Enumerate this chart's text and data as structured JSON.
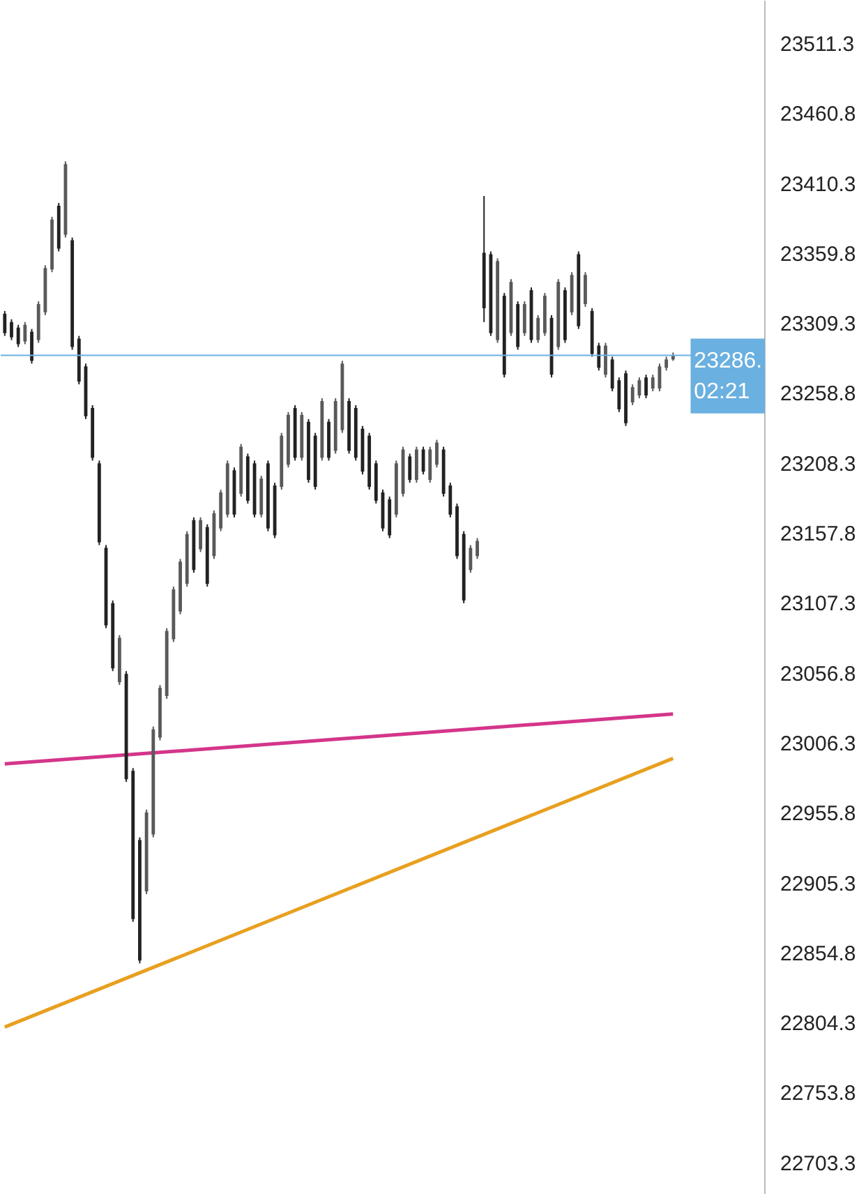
{
  "chart_data": {
    "type": "candlestick",
    "categories": [
      null,
      null,
      null,
      null,
      null,
      null,
      null,
      null,
      null,
      null,
      null,
      null,
      null,
      null,
      null,
      null,
      null,
      null,
      null,
      null,
      null,
      null,
      null,
      null,
      null,
      null,
      null,
      null,
      null,
      null,
      null,
      null,
      null,
      null,
      null,
      null,
      null,
      null,
      null,
      null,
      null,
      null,
      null,
      null,
      null,
      null,
      null,
      null,
      null,
      null,
      null,
      null,
      null,
      null,
      null,
      null,
      null,
      null,
      null,
      null,
      null,
      null,
      null,
      null,
      null,
      null,
      null,
      null,
      null,
      null,
      null,
      null,
      null,
      null,
      null,
      null,
      null,
      null,
      null,
      null,
      null,
      null,
      null,
      null,
      null,
      null,
      null,
      null,
      null,
      null,
      null,
      null,
      null,
      null,
      null,
      null,
      null,
      null,
      null,
      null
    ],
    "ohlc": [
      [
        23316,
        23318,
        23300,
        23302
      ],
      [
        23310,
        23312,
        23297,
        23299
      ],
      [
        23306,
        23308,
        23292,
        23294
      ],
      [
        23296,
        23310,
        23294,
        23308
      ],
      [
        23303,
        23305,
        23280,
        23282
      ],
      [
        23297,
        23325,
        23295,
        23323
      ],
      [
        23317,
        23351,
        23315,
        23349
      ],
      [
        23348,
        23386,
        23346,
        23384
      ],
      [
        23394,
        23396,
        23361,
        23363
      ],
      [
        23373,
        23426,
        23371,
        23424
      ],
      [
        23369,
        23371,
        23290,
        23292
      ],
      [
        23298,
        23300,
        23265,
        23267
      ],
      [
        23278,
        23280,
        23240,
        23242
      ],
      [
        23248,
        23250,
        23210,
        23212
      ],
      [
        23208,
        23210,
        23149,
        23151
      ],
      [
        23147,
        23149,
        23089,
        23091
      ],
      [
        23107,
        23109,
        23058,
        23060
      ],
      [
        23050,
        23084,
        23048,
        23082
      ],
      [
        23056,
        23058,
        22978,
        22980
      ],
      [
        22986,
        22988,
        22877,
        22879
      ],
      [
        22936,
        22938,
        22847,
        22849
      ],
      [
        22899,
        22958,
        22897,
        22956
      ],
      [
        22940,
        23018,
        22938,
        23016
      ],
      [
        23010,
        23048,
        23008,
        23046
      ],
      [
        23040,
        23089,
        23038,
        23087
      ],
      [
        23081,
        23119,
        23079,
        23117
      ],
      [
        23101,
        23139,
        23099,
        23137
      ],
      [
        23121,
        23159,
        23119,
        23157
      ],
      [
        23167,
        23169,
        23129,
        23131
      ],
      [
        23146,
        23169,
        23144,
        23167
      ],
      [
        23162,
        23164,
        23119,
        23121
      ],
      [
        23141,
        23174,
        23139,
        23172
      ],
      [
        23161,
        23189,
        23159,
        23187
      ],
      [
        23171,
        23210,
        23169,
        23208
      ],
      [
        23203,
        23205,
        23169,
        23171
      ],
      [
        23186,
        23222,
        23184,
        23220
      ],
      [
        23213,
        23215,
        23179,
        23181
      ],
      [
        23208,
        23210,
        23169,
        23171
      ],
      [
        23171,
        23199,
        23169,
        23197
      ],
      [
        23208,
        23210,
        23159,
        23161
      ],
      [
        23192,
        23194,
        23154,
        23156
      ],
      [
        23191,
        23230,
        23189,
        23228
      ],
      [
        23207,
        23245,
        23205,
        23243
      ],
      [
        23248,
        23250,
        23210,
        23212
      ],
      [
        23212,
        23245,
        23210,
        23243
      ],
      [
        23238,
        23240,
        23194,
        23196
      ],
      [
        23228,
        23230,
        23189,
        23191
      ],
      [
        23212,
        23255,
        23210,
        23253
      ],
      [
        23238,
        23240,
        23210,
        23212
      ],
      [
        23217,
        23255,
        23215,
        23253
      ],
      [
        23232,
        23282,
        23230,
        23280
      ],
      [
        23253,
        23255,
        23215,
        23217
      ],
      [
        23248,
        23250,
        23210,
        23212
      ],
      [
        23233,
        23235,
        23200,
        23202
      ],
      [
        23228,
        23230,
        23189,
        23191
      ],
      [
        23208,
        23210,
        23179,
        23181
      ],
      [
        23187,
        23189,
        23159,
        23161
      ],
      [
        23182,
        23184,
        23154,
        23156
      ],
      [
        23171,
        23210,
        23169,
        23208
      ],
      [
        23186,
        23220,
        23184,
        23218
      ],
      [
        23213,
        23215,
        23194,
        23196
      ],
      [
        23196,
        23220,
        23194,
        23218
      ],
      [
        23218,
        23220,
        23200,
        23202
      ],
      [
        23196,
        23220,
        23194,
        23218
      ],
      [
        23207,
        23225,
        23205,
        23223
      ],
      [
        23218,
        23220,
        23184,
        23186
      ],
      [
        23192,
        23194,
        23169,
        23171
      ],
      [
        23177,
        23179,
        23139,
        23141
      ],
      [
        23157,
        23159,
        23107,
        23109
      ],
      [
        23131,
        23149,
        23129,
        23147
      ],
      [
        23141,
        23154,
        23139,
        23152
      ],
      [
        23360,
        23401,
        23310,
        23320
      ],
      [
        23359,
        23361,
        23300,
        23302
      ],
      [
        23297,
        23356,
        23295,
        23354
      ],
      [
        23329,
        23331,
        23270,
        23272
      ],
      [
        23302,
        23341,
        23300,
        23339
      ],
      [
        23323,
        23325,
        23290,
        23292
      ],
      [
        23302,
        23325,
        23300,
        23323
      ],
      [
        23333,
        23335,
        23295,
        23297
      ],
      [
        23297,
        23315,
        23295,
        23313
      ],
      [
        23302,
        23331,
        23300,
        23329
      ],
      [
        23313,
        23315,
        23270,
        23272
      ],
      [
        23292,
        23341,
        23290,
        23339
      ],
      [
        23333,
        23335,
        23295,
        23297
      ],
      [
        23317,
        23346,
        23315,
        23344
      ],
      [
        23359,
        23361,
        23305,
        23307
      ],
      [
        23323,
        23346,
        23321,
        23344
      ],
      [
        23318,
        23320,
        23285,
        23287
      ],
      [
        23293,
        23295,
        23275,
        23277
      ],
      [
        23272,
        23295,
        23270,
        23293
      ],
      [
        23283,
        23285,
        23260,
        23262
      ],
      [
        23268,
        23270,
        23245,
        23247
      ],
      [
        23273,
        23275,
        23235,
        23237
      ],
      [
        23252,
        23265,
        23250,
        23263
      ],
      [
        23257,
        23270,
        23255,
        23268
      ],
      [
        23270,
        23272,
        23255,
        23257
      ],
      [
        23262,
        23272,
        23260,
        23270
      ],
      [
        23262,
        23280,
        23260,
        23278
      ],
      [
        23277,
        23285,
        23275,
        23283
      ],
      [
        23283,
        23288,
        23282,
        23286
      ]
    ],
    "colors": [
      "#222222",
      "#222222",
      "#222222",
      "#595959",
      "#222222",
      "#595959",
      "#595959",
      "#595959",
      "#222222",
      "#595959",
      "#222222",
      "#222222",
      "#222222",
      "#222222",
      "#222222",
      "#222222",
      "#222222",
      "#595959",
      "#222222",
      "#222222",
      "#222222",
      "#595959",
      "#595959",
      "#595959",
      "#595959",
      "#595959",
      "#595959",
      "#595959",
      "#222222",
      "#595959",
      "#222222",
      "#595959",
      "#595959",
      "#595959",
      "#222222",
      "#595959",
      "#222222",
      "#222222",
      "#595959",
      "#222222",
      "#222222",
      "#595959",
      "#595959",
      "#222222",
      "#595959",
      "#222222",
      "#222222",
      "#595959",
      "#222222",
      "#595959",
      "#595959",
      "#222222",
      "#222222",
      "#222222",
      "#222222",
      "#222222",
      "#222222",
      "#222222",
      "#595959",
      "#595959",
      "#222222",
      "#595959",
      "#222222",
      "#595959",
      "#595959",
      "#222222",
      "#222222",
      "#222222",
      "#222222",
      "#595959",
      "#595959",
      "#222222",
      "#222222",
      "#595959",
      "#222222",
      "#595959",
      "#222222",
      "#595959",
      "#222222",
      "#595959",
      "#595959",
      "#222222",
      "#595959",
      "#222222",
      "#595959",
      "#222222",
      "#595959",
      "#222222",
      "#222222",
      "#595959",
      "#222222",
      "#222222",
      "#222222",
      "#595959",
      "#595959",
      "#222222",
      "#595959",
      "#595959",
      "#595959",
      "#595959"
    ],
    "series": [
      {
        "type": "line",
        "values": [
          22991,
          null,
          null,
          null,
          null,
          null,
          null,
          null,
          null,
          null,
          null,
          null,
          null,
          null,
          null,
          null,
          null,
          null,
          null,
          null,
          null,
          null,
          null,
          null,
          null,
          null,
          null,
          null,
          null,
          null,
          null,
          null,
          null,
          null,
          null,
          null,
          null,
          null,
          null,
          null,
          null,
          null,
          null,
          null,
          null,
          null,
          null,
          null,
          null,
          null,
          null,
          null,
          null,
          null,
          null,
          null,
          null,
          null,
          null,
          null,
          null,
          null,
          null,
          null,
          null,
          null,
          null,
          null,
          null,
          null,
          null,
          null,
          null,
          null,
          null,
          null,
          null,
          null,
          null,
          null,
          null,
          null,
          null,
          null,
          null,
          null,
          null,
          null,
          null,
          null,
          null,
          null,
          null,
          null,
          null,
          null,
          null,
          null,
          null,
          23027
        ],
        "color": "#d4358a"
      },
      {
        "type": "line",
        "values": [
          22801,
          null,
          null,
          null,
          null,
          null,
          null,
          null,
          null,
          null,
          null,
          null,
          null,
          null,
          null,
          null,
          null,
          null,
          null,
          null,
          null,
          null,
          null,
          null,
          null,
          null,
          null,
          null,
          null,
          null,
          null,
          null,
          null,
          null,
          null,
          null,
          null,
          null,
          null,
          null,
          null,
          null,
          null,
          null,
          null,
          null,
          null,
          null,
          null,
          null,
          null,
          null,
          null,
          null,
          null,
          null,
          null,
          null,
          null,
          null,
          null,
          null,
          null,
          null,
          null,
          null,
          null,
          null,
          null,
          null,
          null,
          null,
          null,
          null,
          null,
          null,
          null,
          null,
          null,
          null,
          null,
          null,
          null,
          null,
          null,
          null,
          null,
          null,
          null,
          null,
          null,
          null,
          null,
          null,
          null,
          null,
          null,
          null,
          null,
          22995
        ],
        "color": "#e8a020"
      }
    ],
    "ylim": [
      22680,
      23542
    ],
    "yticks": [
      22703.3,
      22753.8,
      22804.3,
      22854.8,
      22905.3,
      22955.8,
      23006.3,
      23056.8,
      23107.3,
      23157.8,
      23208.3,
      23258.8,
      23309.3,
      23359.8,
      23410.3,
      23460.8,
      23511.3
    ],
    "tick_labels": "y",
    "ref_lines": [
      {
        "axis": "y",
        "value": 23286,
        "label": "23286.",
        "color": "#6ab0e0"
      }
    ],
    "annotations": [
      "02:21"
    ],
    "grid": false
  }
}
